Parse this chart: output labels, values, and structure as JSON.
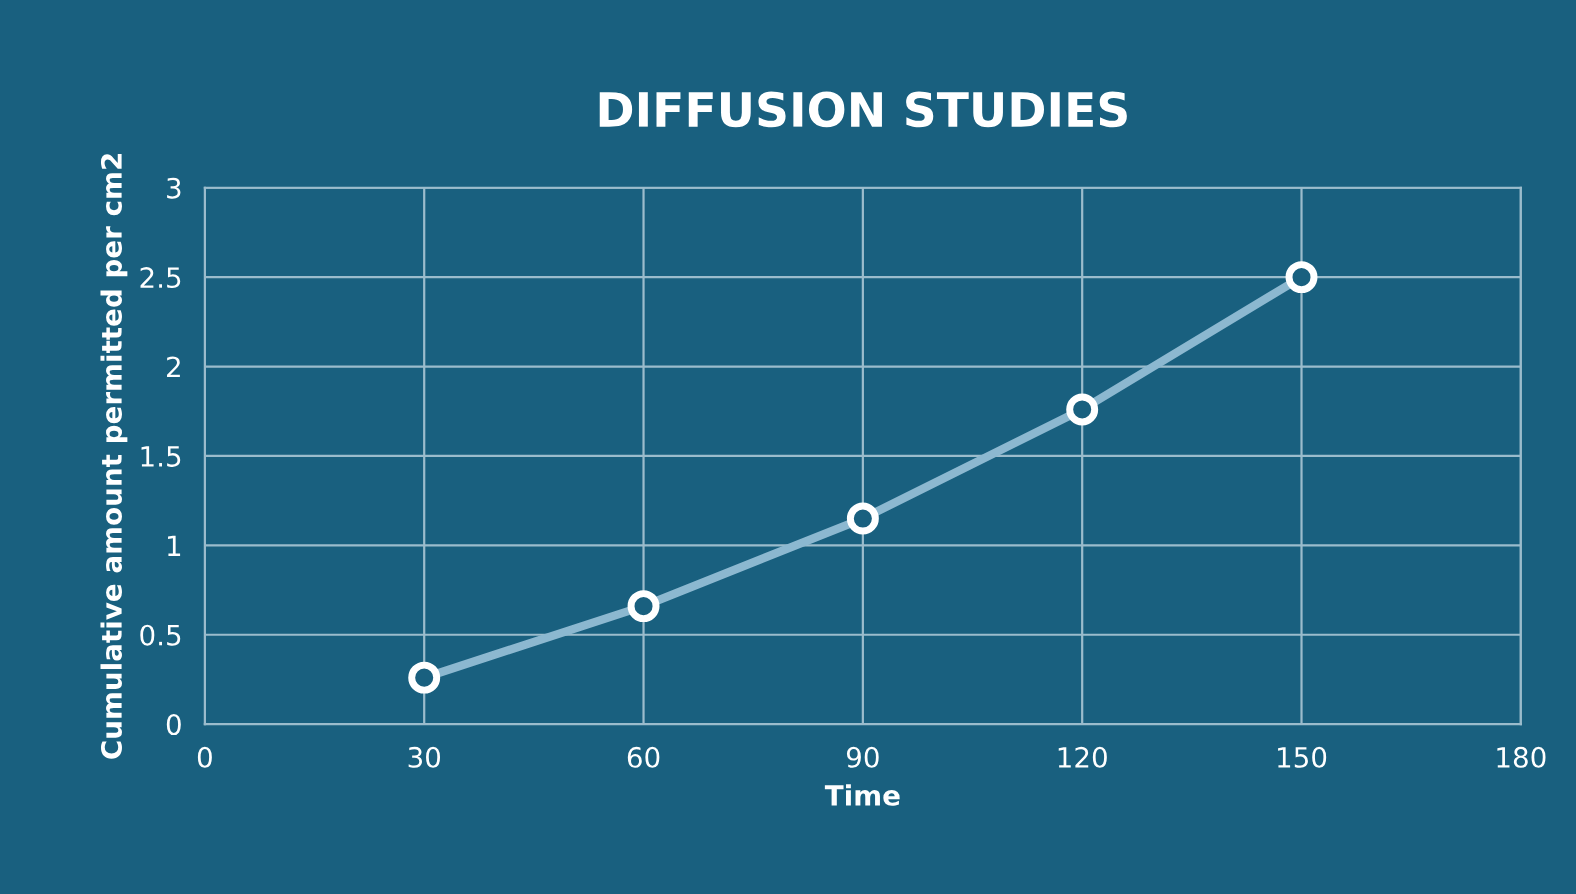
{
  "chart_data": {
    "type": "line",
    "title": "DIFFUSION STUDIES",
    "xlabel": "Time",
    "ylabel": "Cumulative amount permitted per cm2",
    "x": [
      30,
      60,
      90,
      120,
      150
    ],
    "series": [
      {
        "color": "#8cb8d0",
        "values": [
          0.26,
          0.66,
          1.15,
          1.76,
          2.5
        ]
      }
    ],
    "xlim": [
      0,
      180
    ],
    "xticks": [
      0,
      30,
      60,
      90,
      120,
      150,
      180
    ],
    "ylim": [
      0,
      3
    ],
    "yticks": [
      0,
      0.5,
      1,
      1.5,
      2,
      2.5,
      3
    ],
    "grid": true,
    "marker": "circle",
    "line_style": "solid"
  }
}
